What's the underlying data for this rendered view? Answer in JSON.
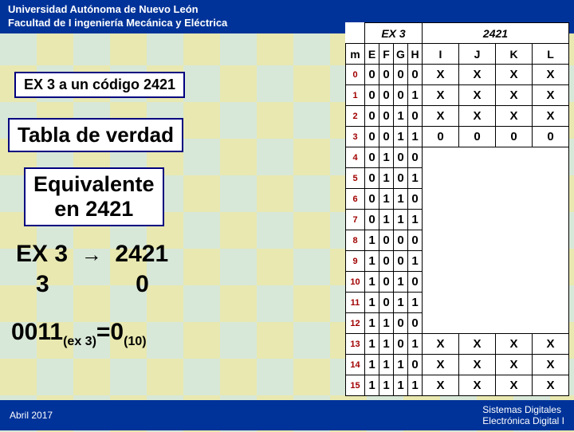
{
  "header": {
    "line1": "Universidad Autónoma de Nuevo León",
    "line2": "Facultad de I ingeniería Mecánica y Eléctrica"
  },
  "footer": {
    "left": "Abril 2017",
    "right1": "Sistemas Digitales",
    "right2": "Electrónica Digital I"
  },
  "labels": {
    "l1": "EX 3 a  un código 2421",
    "l2": "Tabla de verdad",
    "l3a": "Equivalente",
    "l3b": "en 2421"
  },
  "conversion": {
    "top_left": "EX 3",
    "top_right": "2421",
    "bot_left": "3",
    "bot_right": "0"
  },
  "equation": {
    "lhs_main": "0011",
    "lhs_sub": "(ex 3)",
    "rhs_main": "=0",
    "rhs_sub": "(10)"
  },
  "table": {
    "ex3_label": "EX 3",
    "c2421_label": "2421",
    "m_label": "m",
    "efgh": [
      "E",
      "F",
      "G",
      "H"
    ],
    "ijkl": [
      "I",
      "J",
      "K",
      "L"
    ],
    "rows": [
      {
        "m": "0",
        "e": "0",
        "f": "0",
        "g": "0",
        "h": "0",
        "i": "X",
        "j": "X",
        "k": "X",
        "l": "X"
      },
      {
        "m": "1",
        "e": "0",
        "f": "0",
        "g": "0",
        "h": "1",
        "i": "X",
        "j": "X",
        "k": "X",
        "l": "X"
      },
      {
        "m": "2",
        "e": "0",
        "f": "0",
        "g": "1",
        "h": "0",
        "i": "X",
        "j": "X",
        "k": "X",
        "l": "X"
      },
      {
        "m": "3",
        "e": "0",
        "f": "0",
        "g": "1",
        "h": "1",
        "i": "0",
        "j": "0",
        "k": "0",
        "l": "0"
      },
      {
        "m": "4",
        "e": "0",
        "f": "1",
        "g": "0",
        "h": "0",
        "i": "",
        "j": "",
        "k": "",
        "l": ""
      },
      {
        "m": "5",
        "e": "0",
        "f": "1",
        "g": "0",
        "h": "1",
        "i": "",
        "j": "",
        "k": "",
        "l": ""
      },
      {
        "m": "6",
        "e": "0",
        "f": "1",
        "g": "1",
        "h": "0",
        "i": "",
        "j": "",
        "k": "",
        "l": ""
      },
      {
        "m": "7",
        "e": "0",
        "f": "1",
        "g": "1",
        "h": "1",
        "i": "",
        "j": "",
        "k": "",
        "l": ""
      },
      {
        "m": "8",
        "e": "1",
        "f": "0",
        "g": "0",
        "h": "0",
        "i": "",
        "j": "",
        "k": "",
        "l": ""
      },
      {
        "m": "9",
        "e": "1",
        "f": "0",
        "g": "0",
        "h": "1",
        "i": "",
        "j": "",
        "k": "",
        "l": ""
      },
      {
        "m": "10",
        "e": "1",
        "f": "0",
        "g": "1",
        "h": "0",
        "i": "",
        "j": "",
        "k": "",
        "l": ""
      },
      {
        "m": "11",
        "e": "1",
        "f": "0",
        "g": "1",
        "h": "1",
        "i": "",
        "j": "",
        "k": "",
        "l": ""
      },
      {
        "m": "12",
        "e": "1",
        "f": "1",
        "g": "0",
        "h": "0",
        "i": "",
        "j": "",
        "k": "",
        "l": ""
      },
      {
        "m": "13",
        "e": "1",
        "f": "1",
        "g": "0",
        "h": "1",
        "i": "X",
        "j": "X",
        "k": "X",
        "l": "X"
      },
      {
        "m": "14",
        "e": "1",
        "f": "1",
        "g": "1",
        "h": "0",
        "i": "X",
        "j": "X",
        "k": "X",
        "l": "X"
      },
      {
        "m": "15",
        "e": "1",
        "f": "1",
        "g": "1",
        "h": "1",
        "i": "X",
        "j": "X",
        "k": "X",
        "l": "X"
      }
    ]
  },
  "colors": {
    "header_bg": "#003399",
    "check1": "#e8e8b0",
    "check2": "#d8e8d8",
    "box_border": "#000080",
    "m_color": "#a00000"
  }
}
